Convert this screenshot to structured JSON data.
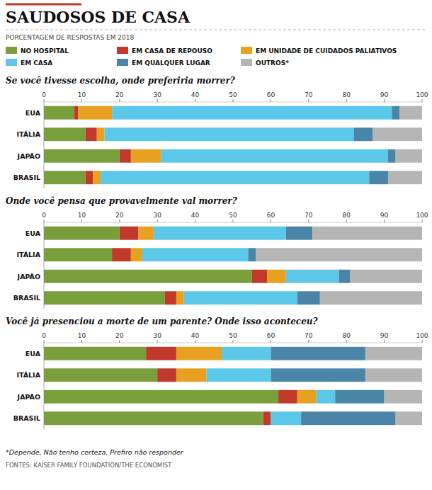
{
  "title": "SAUDOSOS DE CASA",
  "subtitle": "PORCENTAGEM DE RESPOSTAS EM 2018",
  "annotations": [
    "*Depende, Não tenho certeza, Prefiro não responder",
    "FONTES: KAISER FAMILY FOUNDATION/THE ECONOMIST"
  ],
  "chart_data": [
    {
      "type": "bar",
      "orientation": "horizontal",
      "stacked": true,
      "grid": false,
      "legend": "top",
      "title": "Se você tivesse escolha, onde preferiria morrer?",
      "categories": [
        "EUA",
        "ITÁLIA",
        "JAPÃO",
        "BRASIL"
      ],
      "xlim": [
        0,
        100
      ],
      "xticks": [
        0,
        10,
        20,
        30,
        40,
        50,
        60,
        70,
        80,
        90,
        100
      ],
      "series": [
        {
          "name": "NO HOSPITAL",
          "color": "#7b9e3c",
          "values": [
            8,
            11,
            20,
            11
          ]
        },
        {
          "name": "EM CASA DE REPOUSO",
          "color": "#c0392b",
          "values": [
            1,
            3,
            3,
            2
          ]
        },
        {
          "name": "EM UNIDADE DE CUIDADOS PALIATIVOS",
          "color": "#e8a020",
          "values": [
            9,
            2,
            8,
            2
          ]
        },
        {
          "name": "EM CASA",
          "color": "#5bc8ea",
          "values": [
            74,
            66,
            60,
            71
          ]
        },
        {
          "name": "EM QUALQUER LUGAR",
          "color": "#4a85a8",
          "values": [
            2,
            5,
            2,
            5
          ]
        },
        {
          "name": "OUTROS*",
          "color": "#b5b5b5",
          "values": [
            6,
            13,
            7,
            9
          ]
        }
      ]
    },
    {
      "type": "bar",
      "orientation": "horizontal",
      "stacked": true,
      "grid": false,
      "title": "Onde você pensa que provavelmente val morrer?",
      "categories": [
        "EUA",
        "ITÁLIA",
        "JAPÃO",
        "BRASIL"
      ],
      "xlim": [
        0,
        100
      ],
      "xticks": [
        0,
        10,
        20,
        30,
        40,
        50,
        60,
        70,
        80,
        90,
        100
      ],
      "series": [
        {
          "name": "NO HOSPITAL",
          "color": "#7b9e3c",
          "values": [
            20,
            18,
            55,
            32
          ]
        },
        {
          "name": "EM CASA DE REPOUSO",
          "color": "#c0392b",
          "values": [
            5,
            5,
            4,
            3
          ]
        },
        {
          "name": "EM UNIDADE DE CUIDADOS PALIATIVOS",
          "color": "#e8a020",
          "values": [
            4,
            3,
            5,
            2
          ]
        },
        {
          "name": "EM CASA",
          "color": "#5bc8ea",
          "values": [
            35,
            28,
            14,
            30
          ]
        },
        {
          "name": "EM QUALQUER LUGAR",
          "color": "#4a85a8",
          "values": [
            7,
            2,
            3,
            6
          ]
        },
        {
          "name": "OUTROS*",
          "color": "#b5b5b5",
          "values": [
            29,
            44,
            19,
            27
          ]
        }
      ]
    },
    {
      "type": "bar",
      "orientation": "horizontal",
      "stacked": true,
      "grid": false,
      "title": "Você já presenciou a morte de um parente? Onde isso aconteceu?",
      "categories": [
        "EUA",
        "ITÁLIA",
        "JAPÃO",
        "BRASIL"
      ],
      "xlim": [
        0,
        100
      ],
      "xticks": [
        0,
        10,
        20,
        30,
        40,
        50,
        60,
        70,
        80,
        90,
        100
      ],
      "series": [
        {
          "name": "NO HOSPITAL",
          "color": "#7b9e3c",
          "values": [
            27,
            30,
            62,
            58
          ]
        },
        {
          "name": "EM CASA DE REPOUSO",
          "color": "#c0392b",
          "values": [
            8,
            5,
            5,
            2
          ]
        },
        {
          "name": "EM UNIDADE DE CUIDADOS PALIATIVOS",
          "color": "#e8a020",
          "values": [
            12,
            8,
            5,
            0
          ]
        },
        {
          "name": "EM CASA",
          "color": "#5bc8ea",
          "values": [
            13,
            17,
            5,
            8
          ]
        },
        {
          "name": "EM QUALQUER LUGAR",
          "color": "#4a85a8",
          "values": [
            25,
            25,
            13,
            25
          ]
        },
        {
          "name": "OUTROS*",
          "color": "#b5b5b5",
          "values": [
            15,
            15,
            10,
            7
          ]
        }
      ]
    }
  ]
}
